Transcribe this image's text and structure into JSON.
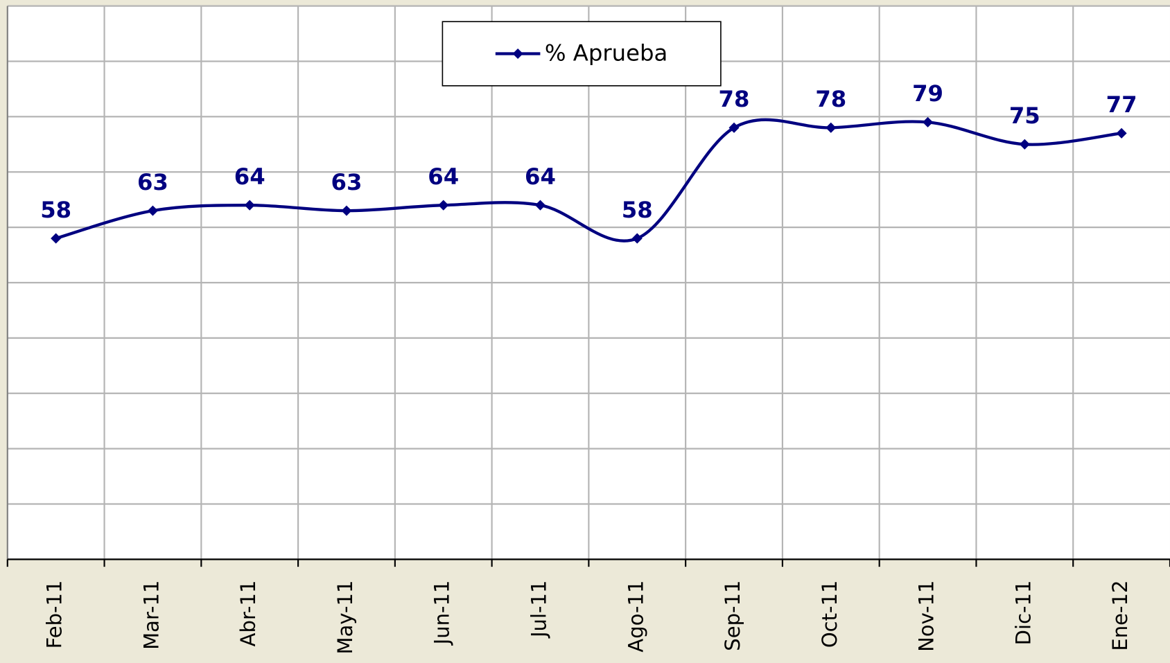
{
  "chart_data": {
    "type": "line",
    "categories": [
      "Feb-11",
      "Mar-11",
      "Abr-11",
      "May-11",
      "Jun-11",
      "Jul-11",
      "Ago-11",
      "Sep-11",
      "Oct-11",
      "Nov-11",
      "Dic-11",
      "Ene-12"
    ],
    "series": [
      {
        "name": "% Aprueba",
        "color": "#000080",
        "values": [
          58,
          63,
          64,
          63,
          64,
          64,
          58,
          78,
          78,
          79,
          75,
          77
        ]
      }
    ],
    "ylim": [
      0,
      100
    ],
    "yticks": [
      0,
      10,
      20,
      30,
      40,
      50,
      60,
      70,
      80,
      90,
      100
    ],
    "grid": true,
    "smooth": true,
    "legend": "top"
  }
}
